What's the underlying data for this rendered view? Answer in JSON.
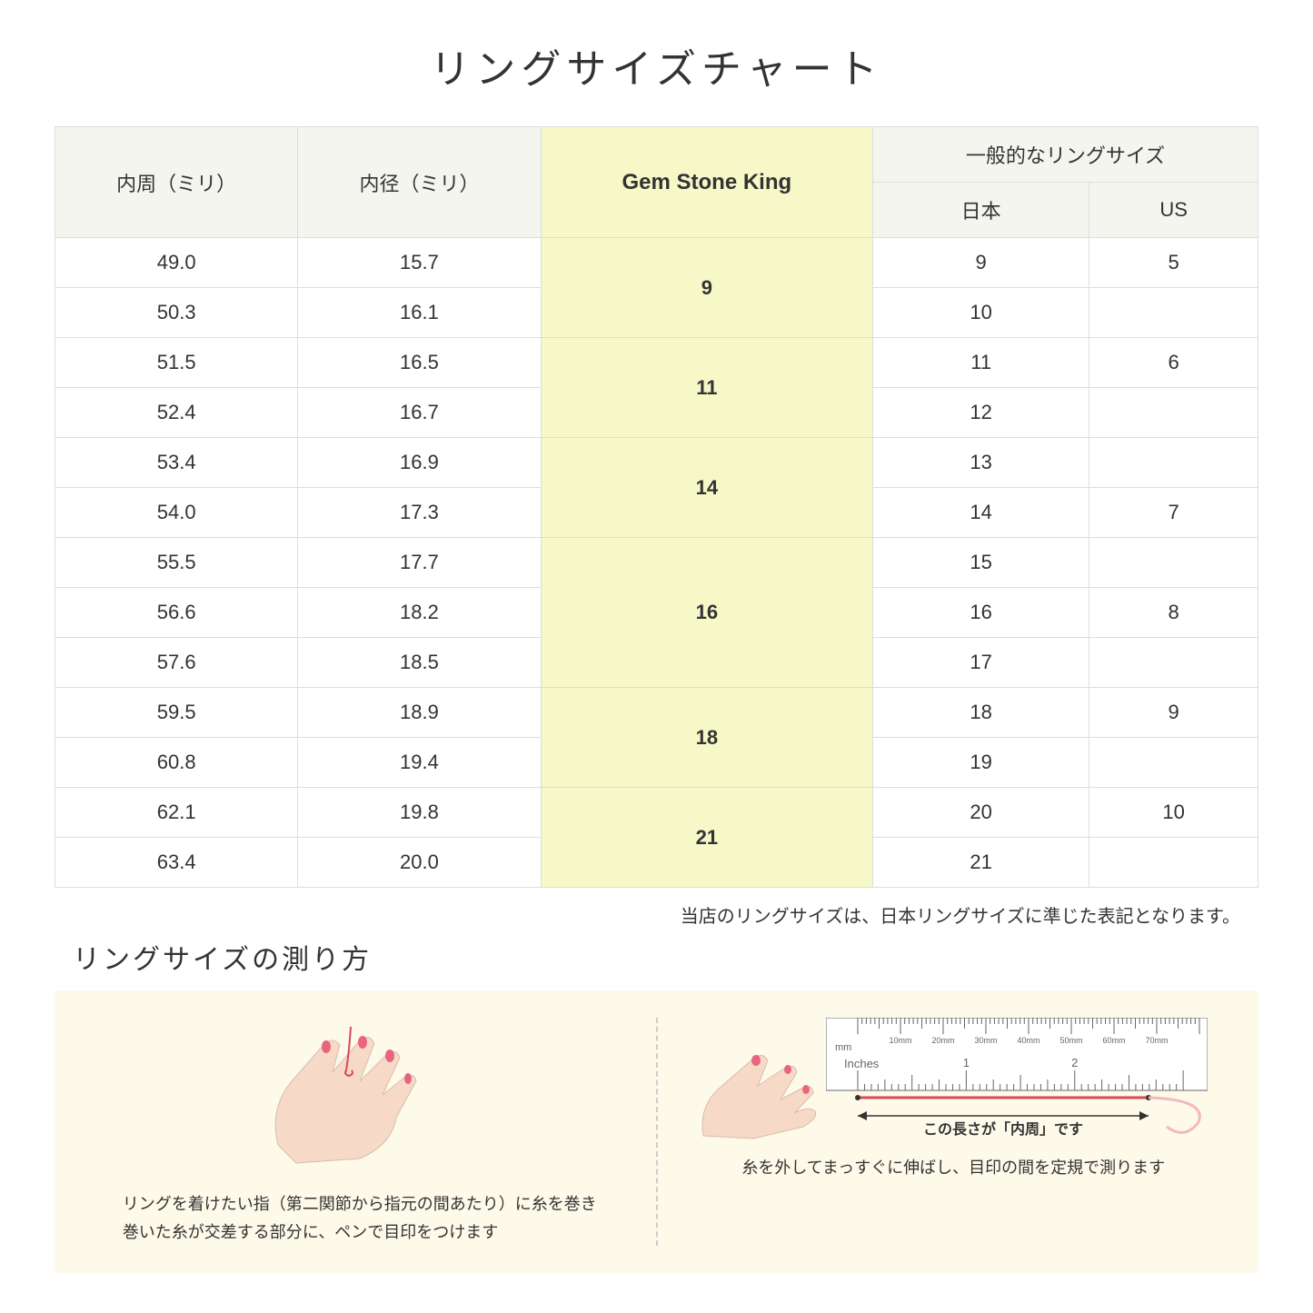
{
  "title": "リングサイズチャート",
  "table": {
    "headers": {
      "circumference": "内周（ミリ）",
      "diameter": "内径（ミリ）",
      "gsk": "Gem Stone King",
      "general": "一般的なリングサイズ",
      "japan": "日本",
      "us": "US"
    },
    "groups": [
      {
        "gsk": "9",
        "rows": [
          {
            "circ": "49.0",
            "dia": "15.7",
            "jp": "9",
            "us": "5"
          },
          {
            "circ": "50.3",
            "dia": "16.1",
            "jp": "10",
            "us": ""
          }
        ]
      },
      {
        "gsk": "11",
        "rows": [
          {
            "circ": "51.5",
            "dia": "16.5",
            "jp": "11",
            "us": "6"
          },
          {
            "circ": "52.4",
            "dia": "16.7",
            "jp": "12",
            "us": ""
          }
        ]
      },
      {
        "gsk": "14",
        "rows": [
          {
            "circ": "53.4",
            "dia": "16.9",
            "jp": "13",
            "us": ""
          },
          {
            "circ": "54.0",
            "dia": "17.3",
            "jp": "14",
            "us": "7"
          }
        ]
      },
      {
        "gsk": "16",
        "rows": [
          {
            "circ": "55.5",
            "dia": "17.7",
            "jp": "15",
            "us": ""
          },
          {
            "circ": "56.6",
            "dia": "18.2",
            "jp": "16",
            "us": "8"
          },
          {
            "circ": "57.6",
            "dia": "18.5",
            "jp": "17",
            "us": ""
          }
        ]
      },
      {
        "gsk": "18",
        "rows": [
          {
            "circ": "59.5",
            "dia": "18.9",
            "jp": "18",
            "us": "9"
          },
          {
            "circ": "60.8",
            "dia": "19.4",
            "jp": "19",
            "us": ""
          }
        ]
      },
      {
        "gsk": "21",
        "rows": [
          {
            "circ": "62.1",
            "dia": "19.8",
            "jp": "20",
            "us": "10"
          },
          {
            "circ": "63.4",
            "dia": "20.0",
            "jp": "21",
            "us": ""
          }
        ]
      }
    ]
  },
  "note": "当店のリングサイズは、日本リングサイズに準じた表記となります。",
  "measure": {
    "title": "リングサイズの測り方",
    "left_instruction": "リングを着けたい指（第二関節から指元の間あたり）に糸を巻き\n巻いた糸が交差する部分に、ペンで目印をつけます",
    "right_instruction": "糸を外してまっすぐに伸ばし、目印の間を定規で測ります",
    "arrow_label": "この長さが「内周」です",
    "ruler_mm": "mm",
    "ruler_inches": "Inches",
    "ruler_ticks_mm": [
      "10mm",
      "20mm",
      "30mm",
      "40mm",
      "50mm",
      "60mm",
      "70mm"
    ],
    "ruler_ticks_in": [
      "1",
      "2"
    ]
  },
  "colors": {
    "header_bg": "#f5f5f0",
    "gsk_bg": "#f6f8c8",
    "border": "#dddddd",
    "measure_bg": "#fdfaea",
    "hand_skin": "#f7d9c8",
    "nail": "#e8657f",
    "thread": "#d94a5a"
  }
}
